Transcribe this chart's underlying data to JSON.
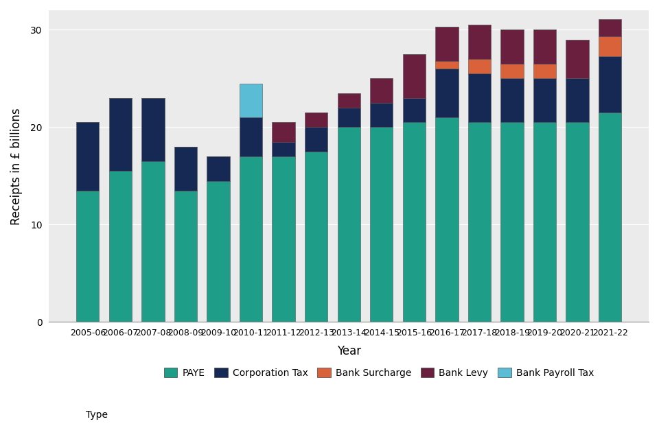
{
  "years": [
    "2005-06",
    "2006-07",
    "2007-08",
    "2008-09",
    "2009-10",
    "2010-11",
    "2011-12",
    "2012-13",
    "2013-14",
    "2014-15",
    "2015-16",
    "2016-17",
    "2017-18",
    "2018-19",
    "2019-20",
    "2020-21",
    "2021-22"
  ],
  "PAYE": [
    13.5,
    15.5,
    16.5,
    13.5,
    14.5,
    17.0,
    17.0,
    17.5,
    20.0,
    20.0,
    20.5,
    21.0,
    20.5,
    20.5,
    20.5,
    20.5,
    21.5
  ],
  "Corporation_Tax": [
    7.0,
    7.5,
    6.5,
    4.5,
    2.5,
    4.0,
    1.5,
    2.5,
    2.0,
    2.5,
    2.5,
    5.0,
    5.0,
    4.5,
    4.5,
    4.5,
    5.8
  ],
  "Bank_Surcharge": [
    0.0,
    0.0,
    0.0,
    0.0,
    0.0,
    0.0,
    0.0,
    0.0,
    0.0,
    0.0,
    0.0,
    0.8,
    1.5,
    1.5,
    1.5,
    0.0,
    2.0
  ],
  "Bank_Levy": [
    0.0,
    0.0,
    0.0,
    0.0,
    0.0,
    0.0,
    2.0,
    1.5,
    1.5,
    2.5,
    4.5,
    3.5,
    3.5,
    3.5,
    3.5,
    4.0,
    1.8
  ],
  "Bank_Payroll_Tax": [
    0.0,
    0.0,
    0.0,
    0.0,
    0.0,
    3.5,
    0.0,
    0.0,
    0.0,
    0.0,
    0.0,
    0.0,
    0.0,
    0.0,
    0.0,
    0.0,
    0.0
  ],
  "colors": {
    "PAYE": "#1e9e89",
    "Corporation_Tax": "#162955",
    "Bank_Surcharge": "#d9623b",
    "Bank_Levy": "#6b1f3e",
    "Bank_Payroll_Tax": "#5bbcd6"
  },
  "xlabel": "Year",
  "ylabel": "Receipts in £ billions",
  "ylim": [
    0,
    32
  ],
  "yticks": [
    0,
    10,
    20,
    30
  ],
  "panel_color": "#ebebeb",
  "grid_color": "#ffffff",
  "legend_labels": [
    "PAYE",
    "Corporation Tax",
    "Bank Surcharge",
    "Bank Levy",
    "Bank Payroll Tax"
  ]
}
